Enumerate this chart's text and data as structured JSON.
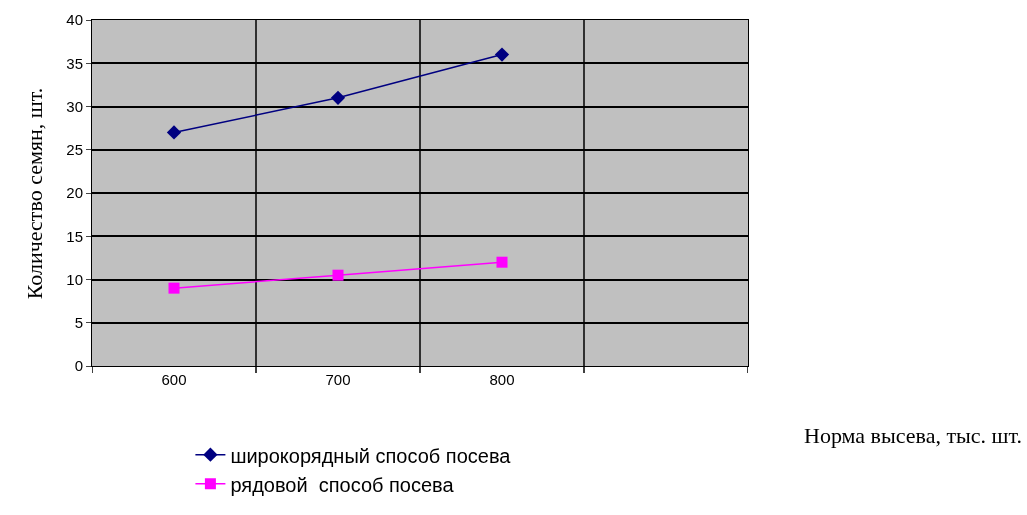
{
  "chart_data": {
    "type": "line",
    "xlabel": "Норма высева, тыс. шт.",
    "ylabel": "Количество семян, шт.",
    "categories": [
      "600",
      "700",
      "800",
      null
    ],
    "series": [
      {
        "name": "широкорядный способ посева",
        "color": "#000080",
        "marker": "diamond",
        "values": [
          27,
          31,
          36,
          null
        ]
      },
      {
        "name": "рядовой  способ посева",
        "color": "#ff00ff",
        "marker": "square",
        "values": [
          9,
          10.5,
          12,
          null
        ]
      }
    ],
    "ylim": [
      0,
      40
    ],
    "yticks": [
      0,
      5,
      10,
      15,
      20,
      25,
      30,
      35,
      40
    ],
    "grid": true,
    "legend": "bottom"
  }
}
